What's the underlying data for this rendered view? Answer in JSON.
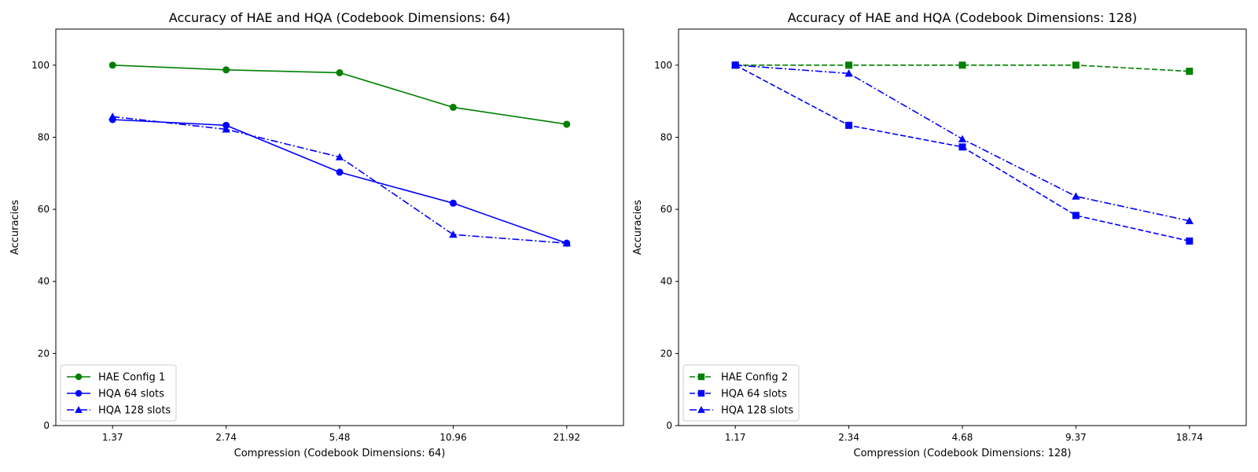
{
  "chart_data": [
    {
      "type": "line",
      "title": "Accuracy of HAE and HQA (Codebook Dimensions: 64)",
      "xlabel": "Compression (Codebook Dimensions: 64)",
      "ylabel": "Accuracies",
      "categories": [
        "1.37",
        "2.74",
        "5.48",
        "10.96",
        "21.92"
      ],
      "ylim": [
        0,
        110
      ],
      "yticks": [
        0,
        20,
        40,
        60,
        80,
        100
      ],
      "grid": false,
      "legend_position": "lower-left",
      "series": [
        {
          "name": "HAE Config 1",
          "values": [
            100,
            98.7,
            97.9,
            88.3,
            83.6
          ],
          "color": "#008000",
          "line_style": "solid",
          "marker": "circle"
        },
        {
          "name": "HQA 64 slots",
          "values": [
            84.9,
            83.3,
            70.3,
            61.7,
            50.6
          ],
          "color": "#0000ff",
          "line_style": "solid",
          "marker": "circle"
        },
        {
          "name": "HQA 128 slots",
          "values": [
            85.7,
            82.2,
            74.5,
            53.0,
            50.6
          ],
          "color": "#0000ff",
          "line_style": "dashdot",
          "marker": "triangle"
        }
      ]
    },
    {
      "type": "line",
      "title": "Accuracy of HAE and HQA (Codebook Dimensions: 128)",
      "xlabel": "Compression (Codebook Dimensions: 128)",
      "ylabel": "Accuracies",
      "categories": [
        "1.17",
        "2.34",
        "4.68",
        "9.37",
        "18.74"
      ],
      "ylim": [
        0,
        110
      ],
      "yticks": [
        0,
        20,
        40,
        60,
        80,
        100
      ],
      "grid": false,
      "legend_position": "lower-left",
      "series": [
        {
          "name": "HAE Config 2",
          "values": [
            100,
            100,
            100,
            100,
            98.3
          ],
          "color": "#008000",
          "line_style": "dashed",
          "marker": "square"
        },
        {
          "name": "HQA 64 slots",
          "values": [
            100,
            83.3,
            77.3,
            58.3,
            51.2
          ],
          "color": "#0000ff",
          "line_style": "dashed",
          "marker": "square"
        },
        {
          "name": "HQA 128 slots",
          "values": [
            100,
            97.7,
            79.5,
            63.6,
            56.8
          ],
          "color": "#0000ff",
          "line_style": "dashdot",
          "marker": "triangle"
        }
      ]
    }
  ]
}
